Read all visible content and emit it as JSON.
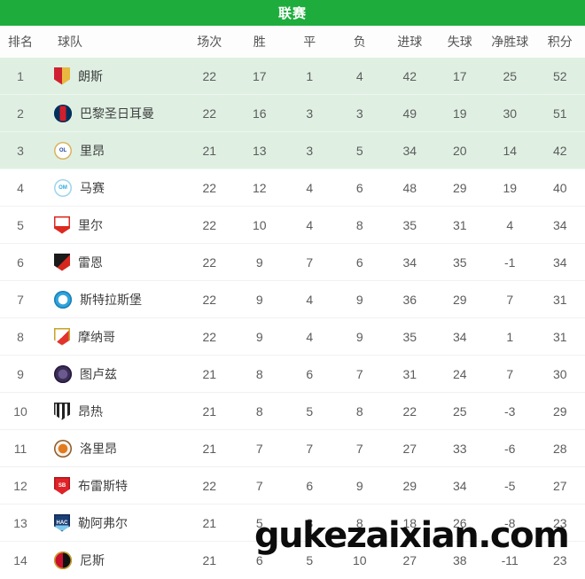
{
  "header": {
    "title": "联赛"
  },
  "columns": [
    "排名",
    "球队",
    "场次",
    "胜",
    "平",
    "负",
    "进球",
    "失球",
    "净胜球",
    "积分"
  ],
  "watermark": {
    "text": "gukezaixian.com"
  },
  "colors": {
    "header_green": "#1ead3d",
    "highlight_row_green": "#dff0e3",
    "watermark_black": "#0c0c0c"
  },
  "teams": [
    {
      "rank": 1,
      "name": "朗斯",
      "highlight": true,
      "stats": [
        22,
        17,
        1,
        4,
        42,
        17,
        25,
        52
      ],
      "logo": {
        "icon": "lens-logo",
        "shape": "shield",
        "split": "vertical",
        "c1": "#cf2031",
        "c2": "#e8b93e",
        "edge": "",
        "text": "",
        "textColor": ""
      }
    },
    {
      "rank": 2,
      "name": "巴黎圣日耳曼",
      "highlight": true,
      "stats": [
        22,
        16,
        3,
        3,
        49,
        19,
        30,
        51
      ],
      "logo": {
        "icon": "psg-logo",
        "shape": "circle",
        "split": "center",
        "c1": "#00305b",
        "c2": "#d21f2b",
        "edge": "#00305b",
        "text": "",
        "textColor": ""
      }
    },
    {
      "rank": 3,
      "name": "里昂",
      "highlight": true,
      "stats": [
        21,
        13,
        3,
        5,
        34,
        20,
        14,
        42
      ],
      "logo": {
        "icon": "lyon-logo",
        "shape": "circle",
        "split": "none",
        "c1": "#ffffff",
        "c2": "",
        "edge": "#d8b25c",
        "text": "OL",
        "textColor": "#27489f"
      }
    },
    {
      "rank": 4,
      "name": "马赛",
      "highlight": false,
      "stats": [
        22,
        12,
        4,
        6,
        48,
        29,
        19,
        40
      ],
      "logo": {
        "icon": "marseille-logo",
        "shape": "circle",
        "split": "none",
        "c1": "#ffffff",
        "c2": "",
        "edge": "#9fd4ec",
        "text": "OM",
        "textColor": "#29a8dd"
      }
    },
    {
      "rank": 5,
      "name": "里尔",
      "highlight": false,
      "stats": [
        22,
        10,
        4,
        8,
        35,
        31,
        4,
        34
      ],
      "logo": {
        "icon": "lille-logo",
        "shape": "shield",
        "split": "bottom",
        "c1": "#ffffff",
        "c2": "#dc2a20",
        "edge": "#dc2a20",
        "text": "",
        "textColor": ""
      }
    },
    {
      "rank": 6,
      "name": "雷恩",
      "highlight": false,
      "stats": [
        22,
        9,
        7,
        6,
        34,
        35,
        -1,
        34
      ],
      "logo": {
        "icon": "rennes-logo",
        "shape": "shield",
        "split": "diagonal",
        "c1": "#1a1a1a",
        "c2": "#d5281e",
        "edge": "",
        "text": "",
        "textColor": ""
      }
    },
    {
      "rank": 7,
      "name": "斯特拉斯堡",
      "highlight": false,
      "stats": [
        22,
        9,
        4,
        9,
        36,
        29,
        7,
        31
      ],
      "logo": {
        "icon": "strasbourg-logo",
        "shape": "circle",
        "split": "dot",
        "c1": "#2fa3dc",
        "c2": "#ffffff",
        "edge": "#1b7fb5",
        "text": "",
        "textColor": ""
      }
    },
    {
      "rank": 8,
      "name": "摩纳哥",
      "highlight": false,
      "stats": [
        22,
        9,
        4,
        9,
        35,
        34,
        1,
        31
      ],
      "logo": {
        "icon": "monaco-logo",
        "shape": "shield",
        "split": "diagonal",
        "c1": "#ffffff",
        "c2": "#e2342d",
        "edge": "#c9a227",
        "text": "",
        "textColor": ""
      }
    },
    {
      "rank": 9,
      "name": "图卢兹",
      "highlight": false,
      "stats": [
        21,
        8,
        6,
        7,
        31,
        24,
        7,
        30
      ],
      "logo": {
        "icon": "toulouse-logo",
        "shape": "circle",
        "split": "dot",
        "c1": "#3b2d55",
        "c2": "#6b5a8e",
        "edge": "#27183f",
        "text": "",
        "textColor": ""
      }
    },
    {
      "rank": 10,
      "name": "昂热",
      "highlight": false,
      "stats": [
        21,
        8,
        5,
        8,
        22,
        25,
        -3,
        29
      ],
      "logo": {
        "icon": "angers-logo",
        "shape": "shield",
        "split": "stripes",
        "c1": "#ffffff",
        "c2": "#222222",
        "edge": "#222222",
        "text": "",
        "textColor": ""
      }
    },
    {
      "rank": 11,
      "name": "洛里昂",
      "highlight": false,
      "stats": [
        21,
        7,
        7,
        7,
        27,
        33,
        -6,
        28
      ],
      "logo": {
        "icon": "lorient-logo",
        "shape": "circle",
        "split": "dot",
        "c1": "#f6f2ea",
        "c2": "#e07b1f",
        "edge": "#8a5a2a",
        "text": "",
        "textColor": ""
      }
    },
    {
      "rank": 12,
      "name": "布雷斯特",
      "highlight": false,
      "stats": [
        22,
        7,
        6,
        9,
        29,
        34,
        -5,
        27
      ],
      "logo": {
        "icon": "brest-logo",
        "shape": "shield",
        "split": "none",
        "c1": "#e02329",
        "c2": "",
        "edge": "#b0151b",
        "text": "SB",
        "textColor": "#ffffff"
      }
    },
    {
      "rank": 13,
      "name": "勒阿弗尔",
      "highlight": false,
      "stats": [
        21,
        5,
        8,
        8,
        18,
        26,
        -8,
        23
      ],
      "logo": {
        "icon": "le-havre-logo",
        "shape": "shield",
        "split": "bottom2",
        "c1": "#1b3f77",
        "c2": "#7fc8ec",
        "edge": "#122c55",
        "text": "HAC",
        "textColor": "#ffffff"
      }
    },
    {
      "rank": 14,
      "name": "尼斯",
      "highlight": false,
      "stats": [
        21,
        6,
        5,
        10,
        27,
        38,
        -11,
        23
      ],
      "logo": {
        "icon": "nice-logo",
        "shape": "circle",
        "split": "vertical",
        "c1": "#c8102e",
        "c2": "#111111",
        "edge": "#c9a227",
        "text": "",
        "textColor": ""
      }
    }
  ]
}
